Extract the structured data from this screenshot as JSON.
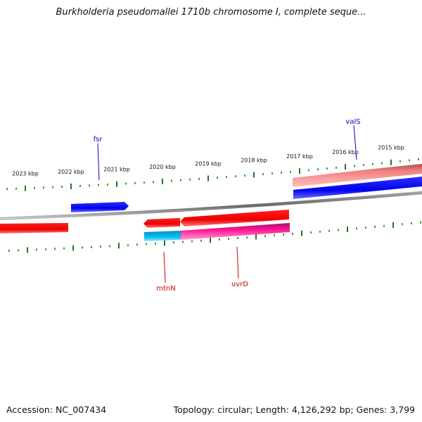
{
  "title": "Burkholderia pseudomallei 1710b chromosome I, complete seque...",
  "footer": {
    "accession": "Accession: NC_007434",
    "summary": "Topology: circular; Length: 4,126,292 bp; Genes: 3,799"
  },
  "ticks": [
    {
      "label": "2023 kbp"
    },
    {
      "label": "2022 kbp"
    },
    {
      "label": "2021 kbp"
    },
    {
      "label": "2020 kbp"
    },
    {
      "label": "2019 kbp"
    },
    {
      "label": "2018 kbp"
    },
    {
      "label": "2017 kbp"
    },
    {
      "label": "2016 kbp"
    },
    {
      "label": "2015 kbp"
    }
  ],
  "genes": [
    {
      "name": "fsr",
      "color": "#0000cc"
    },
    {
      "name": "valS",
      "color": "#0000cc"
    },
    {
      "name": "mtnN",
      "color": "#cc0000"
    },
    {
      "name": "uvrD",
      "color": "#cc0000"
    }
  ],
  "colors": {
    "forward_gene": "#0000ff",
    "reverse_gene": "#ff0000",
    "forward_rna": "#f08080",
    "reverse_cyan": "#00b0e0",
    "reverse_magenta": "#ff1493",
    "backbone": "#808080",
    "tick": "#1a7a1a"
  }
}
